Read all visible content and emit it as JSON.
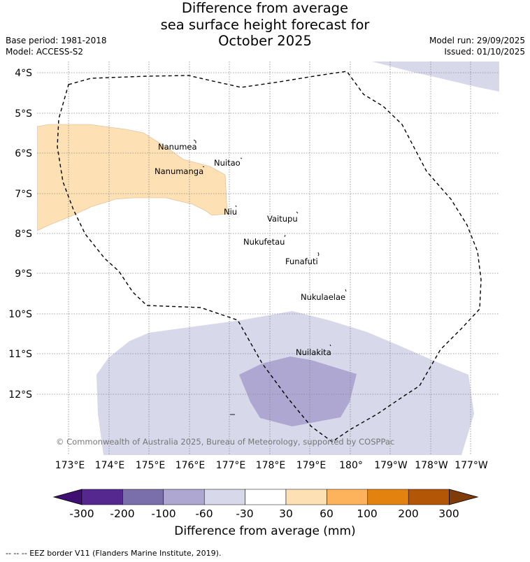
{
  "title": {
    "line1": "Difference from average",
    "line2": "sea surface height forecast for",
    "line3": "October 2025"
  },
  "meta": {
    "base_period": "Base period: 1981-2018",
    "model": "Model: ACCESS-S2",
    "model_run": "Model run: 29/09/2025",
    "issued": "Issued: 01/10/2025"
  },
  "map": {
    "lat_labels": [
      "4°S",
      "5°S",
      "6°S",
      "7°S",
      "8°S",
      "9°S",
      "10°S",
      "11°S",
      "12°S"
    ],
    "lon_labels": [
      "173°E",
      "174°E",
      "175°E",
      "176°E",
      "177°E",
      "178°E",
      "179°E",
      "180°",
      "179°W",
      "178°W",
      "177°W"
    ],
    "places": [
      "Nanumea",
      "Nuitao",
      "Nanumanga",
      "Niu",
      "Vaitupu",
      "Nukufetau",
      "Funafuti",
      "Nukulaelae",
      "Nuilakita"
    ],
    "copyright": "© Commonwealth of Australia 2025, Bureau of Meteorology, supported by COSPPac"
  },
  "colorbar": {
    "labels": [
      "-300",
      "-200",
      "-100",
      "-60",
      "-30",
      "30",
      "60",
      "100",
      "200",
      "300"
    ],
    "colors": [
      "#3f0f72",
      "#54288f",
      "#7b6fab",
      "#aea7d1",
      "#d7d8ea",
      "#ffffff",
      "#fde0b3",
      "#fdb35c",
      "#e3820f",
      "#b35606",
      "#7f3b08"
    ],
    "title": "Difference from average (mm)"
  },
  "footnote": "-- -- -- EEZ border V11 (Flanders Marine Institute, 2019)."
}
